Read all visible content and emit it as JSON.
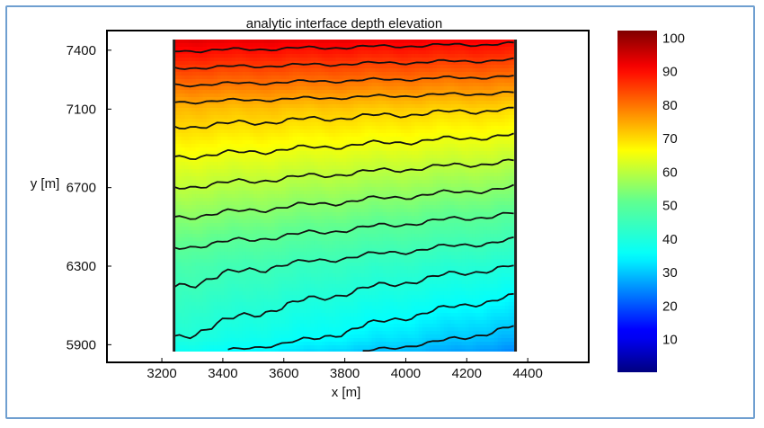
{
  "chart_data": {
    "type": "heatmap",
    "subtype": "contour",
    "title": "analytic interface depth elevation",
    "xlabel": "x [m]",
    "ylabel": "y [m]",
    "xlim": [
      3020,
      4600
    ],
    "ylim": [
      5810,
      7500
    ],
    "x_ticks": [
      3200,
      3400,
      3600,
      3800,
      4000,
      4200,
      4400
    ],
    "y_ticks": [
      5900,
      6300,
      6700,
      7100,
      7400
    ],
    "data_extent": {
      "x": [
        3240,
        4360
      ],
      "y": [
        5850,
        7580
      ]
    },
    "colorbar": {
      "range": [
        0,
        102
      ],
      "ticks": [
        10,
        20,
        30,
        40,
        50,
        60,
        70,
        80,
        90,
        100
      ],
      "colormap": "jet"
    },
    "contour_levels": [
      30,
      35,
      40,
      45,
      50,
      55,
      60,
      65,
      70,
      75,
      80,
      85,
      90,
      95
    ],
    "surface_samples": {
      "x": [
        3240,
        4360
      ],
      "values_left": [
        [
          5850,
          36
        ],
        [
          5930,
          40
        ],
        [
          6300,
          47
        ],
        [
          6700,
          60
        ],
        [
          7100,
          73
        ],
        [
          7500,
          96
        ]
      ],
      "values_right": [
        [
          5850,
          24
        ],
        [
          5930,
          28
        ],
        [
          6300,
          40
        ],
        [
          6700,
          55
        ],
        [
          7100,
          70
        ],
        [
          7500,
          94
        ]
      ]
    },
    "grid": false,
    "colors": {
      "frame_border": "#6f9fd0",
      "contour_line": "#111111",
      "axes": "#000000"
    }
  }
}
